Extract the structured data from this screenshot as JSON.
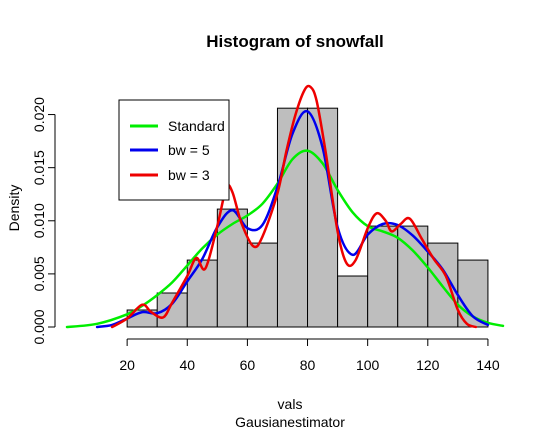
{
  "chart_data": {
    "type": "histogram",
    "title": "Histogram of snowfall",
    "xlabel": "vals",
    "subtitle": "Gausianestimator",
    "ylabel": "Density",
    "xlim": [
      0,
      150
    ],
    "ylim": [
      0,
      0.0225
    ],
    "x_ticks": [
      20,
      40,
      60,
      80,
      100,
      120,
      140
    ],
    "y_ticks": [
      0.0,
      0.005,
      0.01,
      0.015,
      0.02
    ],
    "y_tick_labels": [
      "0.000",
      "0.005",
      "0.010",
      "0.015",
      "0.020"
    ],
    "bins": [
      {
        "x0": 20,
        "x1": 30,
        "density": 0.0016
      },
      {
        "x0": 30,
        "x1": 40,
        "density": 0.0032
      },
      {
        "x0": 40,
        "x1": 50,
        "density": 0.0063
      },
      {
        "x0": 50,
        "x1": 60,
        "density": 0.0111
      },
      {
        "x0": 60,
        "x1": 70,
        "density": 0.0079
      },
      {
        "x0": 70,
        "x1": 80,
        "density": 0.0206
      },
      {
        "x0": 80,
        "x1": 90,
        "density": 0.0206
      },
      {
        "x0": 90,
        "x1": 100,
        "density": 0.0048
      },
      {
        "x0": 100,
        "x1": 110,
        "density": 0.0095
      },
      {
        "x0": 110,
        "x1": 120,
        "density": 0.0095
      },
      {
        "x0": 120,
        "x1": 130,
        "density": 0.0079
      },
      {
        "x0": 130,
        "x1": 140,
        "density": 0.0063
      }
    ],
    "bar_color": "#bebebe",
    "series": [
      {
        "name": "Standard",
        "color": "#00ee00",
        "x": [
          0,
          10,
          20,
          25,
          30,
          35,
          40,
          45,
          50,
          55,
          60,
          65,
          70,
          75,
          80,
          85,
          90,
          95,
          100,
          105,
          110,
          115,
          120,
          125,
          130,
          135,
          140,
          145
        ],
        "y": [
          0.0,
          0.0003,
          0.0012,
          0.002,
          0.003,
          0.0042,
          0.0058,
          0.0074,
          0.0087,
          0.0097,
          0.0105,
          0.0116,
          0.0135,
          0.0158,
          0.0166,
          0.0154,
          0.0129,
          0.0108,
          0.0095,
          0.009,
          0.0084,
          0.0072,
          0.0056,
          0.0038,
          0.0021,
          0.001,
          0.0004,
          0.0001
        ]
      },
      {
        "name": "bw = 5",
        "color": "#0000ee",
        "x": [
          10,
          15,
          20,
          25,
          30,
          35,
          40,
          45,
          50,
          55,
          60,
          65,
          70,
          75,
          80,
          85,
          90,
          95,
          100,
          105,
          110,
          115,
          120,
          125,
          130,
          135,
          140
        ],
        "y": [
          0.0,
          0.0002,
          0.0008,
          0.0014,
          0.0013,
          0.0022,
          0.0043,
          0.0064,
          0.0094,
          0.011,
          0.0093,
          0.0096,
          0.0132,
          0.0182,
          0.0203,
          0.0169,
          0.0094,
          0.0068,
          0.0087,
          0.0097,
          0.0096,
          0.0086,
          0.0071,
          0.0054,
          0.003,
          0.001,
          0.0002
        ]
      },
      {
        "name": "bw = 3",
        "color": "#ee0000",
        "x": [
          15,
          20,
          25,
          28,
          32,
          35,
          40,
          43,
          46,
          50,
          53,
          55,
          58,
          62,
          65,
          70,
          73,
          76,
          79,
          81,
          83,
          86,
          90,
          93,
          96,
          100,
          103,
          106,
          108,
          111,
          114,
          118,
          122,
          126,
          130,
          133,
          136
        ],
        "y": [
          0.0,
          0.0008,
          0.0021,
          0.0014,
          0.0009,
          0.0023,
          0.0048,
          0.0065,
          0.0055,
          0.0095,
          0.0131,
          0.0127,
          0.0098,
          0.0076,
          0.0085,
          0.0126,
          0.0166,
          0.02,
          0.0223,
          0.0226,
          0.0213,
          0.0165,
          0.009,
          0.006,
          0.0063,
          0.0093,
          0.0107,
          0.01,
          0.009,
          0.0097,
          0.0102,
          0.0083,
          0.0064,
          0.0048,
          0.0016,
          0.0003,
          0.0
        ]
      }
    ],
    "legend": {
      "placement": "top-left",
      "entries": [
        "Standard",
        "bw = 5",
        "bw = 3"
      ]
    }
  }
}
